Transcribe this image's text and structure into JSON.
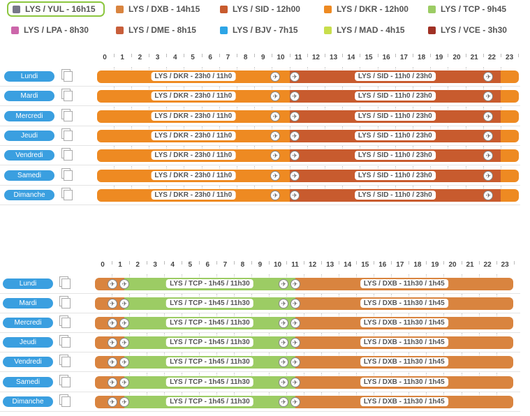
{
  "colors": {
    "day_button": "#3a9fe0"
  },
  "legend": [
    {
      "label": "LYS / YUL - 16h15",
      "color": "#777789",
      "selected": true
    },
    {
      "label": "LYS / DXB - 14h15",
      "color": "#d9843f"
    },
    {
      "label": "LYS / SID - 12h00",
      "color": "#c85b2e"
    },
    {
      "label": "LYS / DKR - 12h00",
      "color": "#ee8a22"
    },
    {
      "label": "LYS / TCP - 9h45",
      "color": "#9ccc64"
    },
    {
      "label": "LYS / LPA - 8h30",
      "color": "#cc66aa"
    },
    {
      "label": "LYS / DME - 8h15",
      "color": "#c85e3a"
    },
    {
      "label": "LYS / BJV - 7h15",
      "color": "#2da5e6"
    },
    {
      "label": "LYS / MAD - 4h15",
      "color": "#c8de4c"
    },
    {
      "label": "LYS / VCE - 3h30",
      "color": "#a03124"
    }
  ],
  "hours": [
    "0",
    "1",
    "2",
    "3",
    "4",
    "5",
    "6",
    "7",
    "8",
    "9",
    "10",
    "11",
    "12",
    "13",
    "14",
    "15",
    "16",
    "17",
    "18",
    "19",
    "20",
    "21",
    "22",
    "23"
  ],
  "schedules": [
    {
      "days": [
        "Lundi",
        "Mardi",
        "Mercredi",
        "Jeudi",
        "Vendredi",
        "Samedi",
        "Dimanche"
      ],
      "segments": [
        {
          "label": "LYS / DKR - 23h0 / 11h0",
          "color": "#ee8a22",
          "start": -1,
          "end": 11
        },
        {
          "label": "LYS / SID - 11h0 / 23h0",
          "color": "#c85b2e",
          "start": 11,
          "end": 23
        },
        {
          "label": "",
          "color": "#ee8a22",
          "start": 23,
          "end": 24.8
        }
      ],
      "plane_marks": [
        10.2,
        11.3,
        22.3
      ]
    },
    {
      "days": [
        "Lundi",
        "Mardi",
        "Mercredi",
        "Jeudi",
        "Vendredi",
        "Samedi",
        "Dimanche"
      ],
      "segments": [
        {
          "label": "",
          "color": "#d9843f",
          "start": -1,
          "end": 1.75
        },
        {
          "label": "LYS / TCP - 1h45 / 11h30",
          "color": "#9ccc64",
          "start": 1.75,
          "end": 11.5
        },
        {
          "label": "LYS / DXB - 11h30 / 1h45",
          "color": "#d9843f",
          "start": 11.5,
          "end": 24.6
        }
      ],
      "plane_marks": [
        1.05,
        1.75,
        10.85,
        11.5
      ]
    }
  ]
}
